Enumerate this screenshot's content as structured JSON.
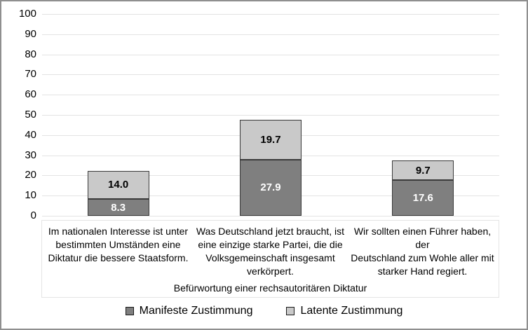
{
  "chart_data": {
    "type": "bar",
    "stacked": true,
    "title": "",
    "xlabel": "Befürwortung einer rechsautoritären Diktatur",
    "ylabel": "",
    "ylim": [
      0,
      100
    ],
    "ytick_labels": [
      "0",
      "10",
      "20",
      "30",
      "40",
      "50",
      "60",
      "70",
      "80",
      "90",
      "100"
    ],
    "grid": true,
    "legend_position": "bottom",
    "categories": [
      "Im nationalen Interesse ist unter\nbestimmten Umständen eine\nDiktatur die bessere Staatsform.",
      "Was Deutschland jetzt braucht, ist\neine einzige starke Partei, die die\nVolksgemeinschaft insgesamt\nverkörpert.",
      "Wir sollten einen Führer haben, der\nDeutschland zum Wohle aller mit\nstarker Hand regiert."
    ],
    "series": [
      {
        "name": "Manifeste Zustimmung",
        "values": [
          8.3,
          27.9,
          17.6
        ],
        "value_labels": [
          "8.3",
          "27.9",
          "17.6"
        ],
        "color": "#7f7f7f",
        "label_color": "#ffffff"
      },
      {
        "name": "Latente Zustimmung",
        "values": [
          14.0,
          19.7,
          9.7
        ],
        "value_labels": [
          "14.0",
          "19.7",
          "9.7"
        ],
        "color": "#c9c9c9",
        "label_color": "#000000"
      }
    ],
    "colors": {
      "segment_border": "#3a3a3a",
      "gridline": "#e3e3e3",
      "frame_border": "#8f8f8f",
      "text": "#000000"
    }
  }
}
